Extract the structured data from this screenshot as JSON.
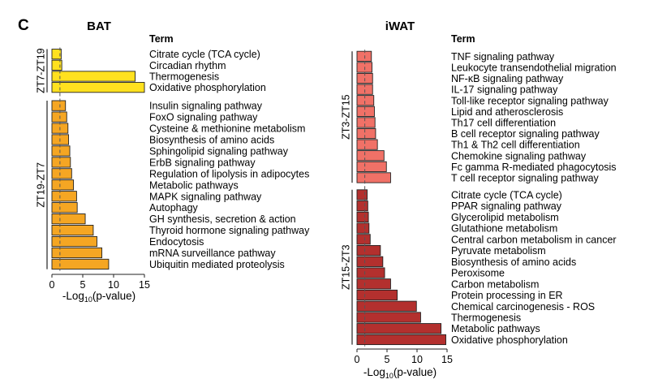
{
  "panel_label": "C",
  "colors": {
    "bat_top": "#FFE11F",
    "bat_bottom": "#F5A623",
    "iwat_top": "#F07167",
    "iwat_bottom": "#B3302E",
    "stroke": "#222222",
    "threshold_line": "#555555"
  },
  "chart_data": [
    {
      "type": "bar",
      "orientation": "horizontal",
      "title": "BAT",
      "legend_title": "Term",
      "xlabel_main": "-Log",
      "xlabel_sub": "10",
      "xlabel_tail": "(p-value)",
      "xlim": [
        0,
        15
      ],
      "xticks": [
        "0",
        "5",
        "10",
        "15"
      ],
      "threshold": 1.3,
      "grid": false,
      "groups": [
        {
          "name": "ZT7-ZT19",
          "categories": [
            "Citrate cycle (TCA cycle)",
            "Circadian rhythm",
            "Thermogenesis",
            "Oxidative phosphorylation"
          ],
          "values": [
            1.5,
            1.6,
            13.5,
            15.0
          ]
        },
        {
          "name": "ZT19-ZT7",
          "categories": [
            "Insulin signaling pathway",
            "FoxO signaling pathway",
            "Cysteine & methionine metabolism",
            "Biosynthesis of amino acids",
            "Sphingolipid signaling pathway",
            "ErbB signaling pathway",
            "Regulation of lipolysis in adipocytes",
            "Metabolic pathways",
            "MAPK signaling pathway",
            "Autophagy",
            "GH synthesis, secretion & action",
            "Thyroid hormone signaling pathway",
            "Endocytosis",
            "mRNA surveillance pathway",
            "Ubiquitin mediated proteolysis"
          ],
          "values": [
            2.2,
            2.4,
            2.6,
            2.7,
            2.9,
            3.0,
            3.2,
            3.5,
            4.0,
            4.1,
            5.4,
            6.7,
            7.3,
            8.1,
            9.2
          ]
        }
      ]
    },
    {
      "type": "bar",
      "orientation": "horizontal",
      "title": "iWAT",
      "legend_title": "Term",
      "xlabel_main": "-Log",
      "xlabel_sub": "10",
      "xlabel_tail": "(p-value)",
      "xlim": [
        0,
        15
      ],
      "xticks": [
        "0",
        "5",
        "10",
        "15"
      ],
      "threshold": 1.3,
      "grid": false,
      "groups": [
        {
          "name": "ZT3-ZT15",
          "categories": [
            "TNF signaling pathway",
            "Leukocyte transendothelial migration",
            "NF-κB signaling pathway",
            "IL-17 signaling pathway",
            "Toll-like receptor signaling pathway",
            "Lipid and atherosclerosis",
            "Th17 cell differentiation",
            "B cell receptor signaling pathway",
            "Th1 & Th2 cell differentiation",
            "Chemokine signaling pathway",
            "Fc gamma R-mediated phagocytosis",
            "T cell receptor signaling pathway"
          ],
          "values": [
            2.4,
            2.5,
            2.6,
            2.6,
            2.8,
            2.9,
            3.0,
            3.1,
            3.4,
            4.5,
            4.9,
            5.6
          ]
        },
        {
          "name": "ZT15-ZT3",
          "categories": [
            "Citrate cycle (TCA cycle)",
            "PPAR signaling pathway",
            "Glycerolipid metabolism",
            "Glutathione metabolism",
            "Central carbon metabolism in cancer",
            "Pyruvate metabolism",
            "Biosynthesis of amino acids",
            "Peroxisome",
            "Carbon metabolism",
            "Protein processing in ER",
            "Chemical carcinogenesis - ROS",
            "Thermogenesis",
            "Metabolic pathways",
            "Oxidative phosphorylation"
          ],
          "values": [
            1.7,
            1.8,
            1.9,
            2.0,
            2.2,
            3.9,
            4.3,
            4.6,
            5.6,
            6.7,
            9.9,
            10.6,
            14.0,
            14.8
          ]
        }
      ]
    }
  ]
}
